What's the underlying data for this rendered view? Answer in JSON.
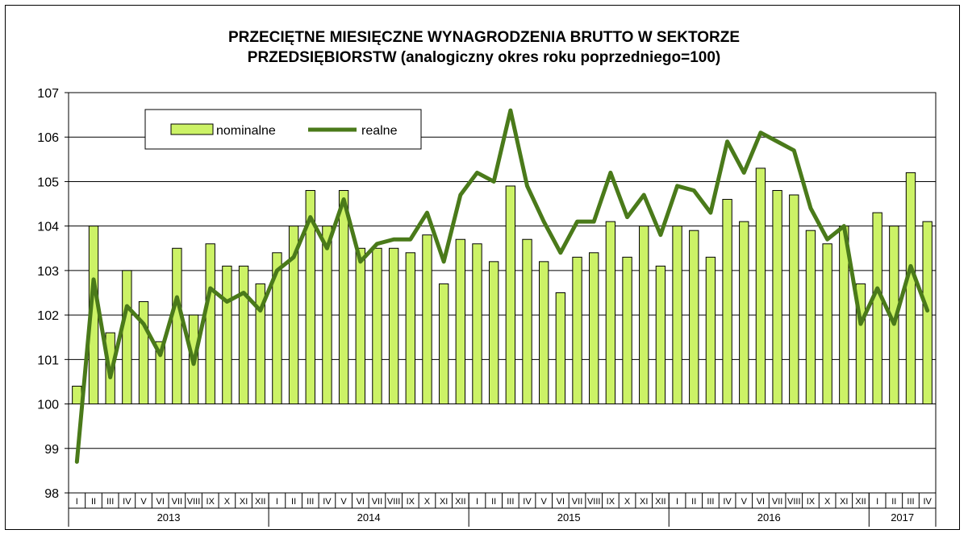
{
  "chart_data": {
    "type": "bar",
    "title_line1": "PRZECIĘTNE MIESIĘCZNE WYNAGRODZENIA BRUTTO W SEKTORZE",
    "title_line2": "PRZEDSIĘBIORSTW (analogiczny okres roku poprzedniego=100)",
    "ylim": [
      98,
      107
    ],
    "yticks": [
      "98",
      "99",
      "100",
      "101",
      "102",
      "103",
      "104",
      "105",
      "106",
      "107"
    ],
    "grid": true,
    "legend_position": "top-left",
    "colors": {
      "bar": "#ccf266",
      "bar_edge": "#000000",
      "line": "#4a7a1a",
      "grid": "#000000"
    },
    "month_labels": [
      "I",
      "II",
      "III",
      "IV",
      "V",
      "VI",
      "VII",
      "VIII",
      "IX",
      "X",
      "XI",
      "XII",
      "I",
      "II",
      "III",
      "IV",
      "V",
      "VI",
      "VII",
      "VIII",
      "IX",
      "X",
      "XI",
      "XII",
      "I",
      "II",
      "III",
      "IV",
      "V",
      "VI",
      "VII",
      "VIII",
      "IX",
      "X",
      "XI",
      "XII",
      "I",
      "II",
      "III",
      "IV",
      "V",
      "VI",
      "VII",
      "VIII",
      "IX",
      "X",
      "XI",
      "XII",
      "I",
      "II",
      "III",
      "IV"
    ],
    "years": [
      {
        "label": "2013",
        "months": 12
      },
      {
        "label": "2014",
        "months": 12
      },
      {
        "label": "2015",
        "months": 12
      },
      {
        "label": "2016",
        "months": 12
      },
      {
        "label": "2017",
        "months": 4
      }
    ],
    "series": [
      {
        "name": "nominalne",
        "type": "bar",
        "values": [
          100.4,
          104.0,
          101.6,
          103.0,
          102.3,
          101.4,
          103.5,
          102.0,
          103.6,
          103.1,
          103.1,
          102.7,
          103.4,
          104.0,
          104.8,
          104.0,
          104.8,
          103.5,
          103.5,
          103.5,
          103.4,
          103.8,
          102.7,
          103.7,
          103.6,
          103.2,
          104.9,
          103.7,
          103.2,
          102.5,
          103.3,
          103.4,
          104.1,
          103.3,
          104.0,
          103.1,
          104.0,
          103.9,
          103.3,
          104.6,
          104.1,
          105.3,
          104.8,
          104.7,
          103.9,
          103.6,
          104.0,
          102.7,
          104.3,
          104.0,
          105.2,
          104.1
        ]
      },
      {
        "name": "realne",
        "type": "line",
        "values": [
          98.7,
          102.8,
          100.6,
          102.2,
          101.8,
          101.1,
          102.4,
          100.9,
          102.6,
          102.3,
          102.5,
          102.1,
          103.0,
          103.3,
          104.2,
          103.5,
          104.6,
          103.2,
          103.6,
          103.7,
          103.7,
          104.3,
          103.2,
          104.7,
          105.2,
          105.0,
          106.6,
          104.9,
          104.1,
          103.4,
          104.1,
          104.1,
          105.2,
          104.2,
          104.7,
          103.8,
          104.9,
          104.8,
          104.3,
          105.9,
          105.2,
          106.1,
          105.9,
          105.7,
          104.4,
          103.7,
          104.0,
          101.8,
          102.6,
          101.8,
          103.1,
          102.1
        ]
      }
    ]
  }
}
